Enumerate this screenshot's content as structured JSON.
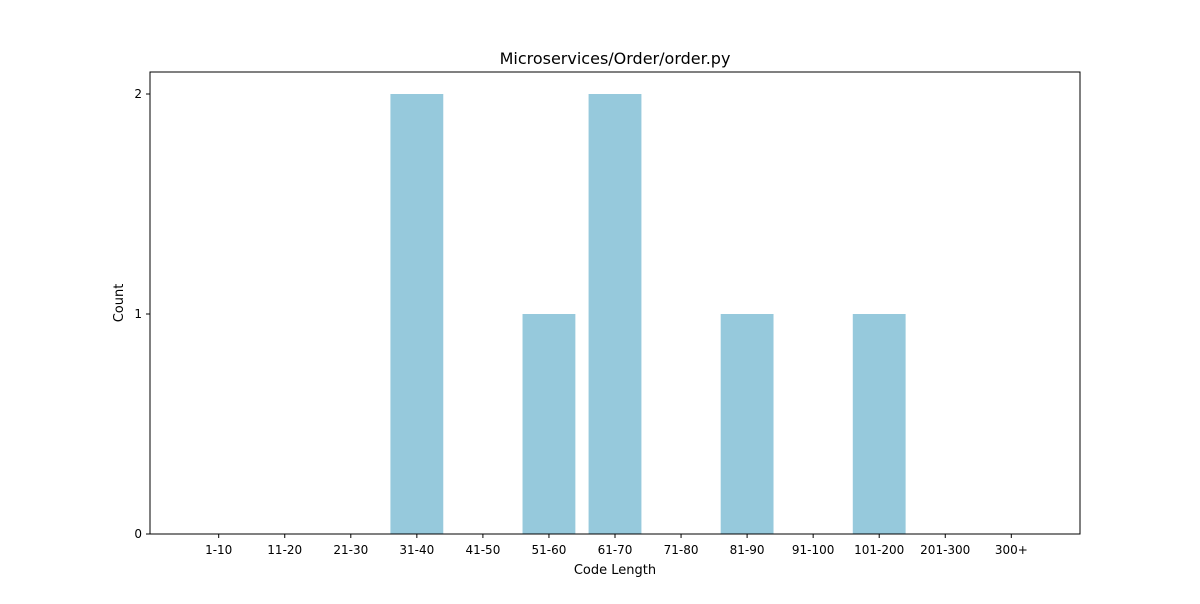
{
  "chart_data": {
    "type": "bar",
    "title": "Microservices/Order/order.py",
    "xlabel": "Code Length",
    "ylabel": "Count",
    "categories": [
      "1-10",
      "11-20",
      "21-30",
      "31-40",
      "41-50",
      "51-60",
      "61-70",
      "71-80",
      "81-90",
      "91-100",
      "101-200",
      "201-300",
      "300+"
    ],
    "values": [
      0,
      0,
      0,
      2,
      0,
      1,
      2,
      0,
      1,
      0,
      1,
      0,
      0
    ],
    "ylim": [
      0,
      2.1
    ],
    "yticks": [
      0,
      1,
      2
    ],
    "grid": false,
    "bar_color": "#96c9dc"
  }
}
